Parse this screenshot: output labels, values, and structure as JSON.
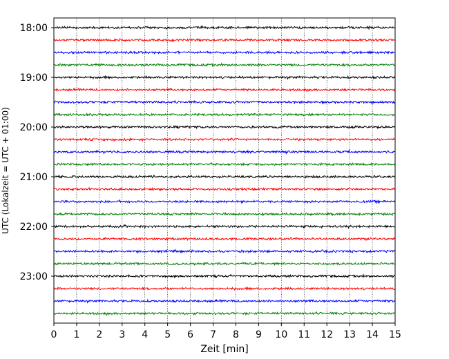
{
  "chart_data": {
    "type": "line",
    "title": "",
    "xlabel": "Zeit  [min]",
    "ylabel": "UTC (Lokalzeit = UTC + 01:00)",
    "xlim": [
      0,
      15
    ],
    "x_ticks": [
      0,
      1,
      2,
      3,
      4,
      5,
      6,
      7,
      8,
      9,
      10,
      11,
      12,
      13,
      14,
      15
    ],
    "y_tick_labels": [
      "18:00",
      "19:00",
      "20:00",
      "21:00",
      "22:00",
      "23:00"
    ],
    "y_tick_hours": [
      18,
      19,
      20,
      21,
      22,
      23
    ],
    "grid": "vertical dotted",
    "legend": "none",
    "trace_start_hour": 18,
    "trace_interval_minutes": 15,
    "trace_count": 24,
    "trace_colors": [
      "#000000",
      "#ff0000",
      "#0000ff",
      "#008000"
    ]
  }
}
